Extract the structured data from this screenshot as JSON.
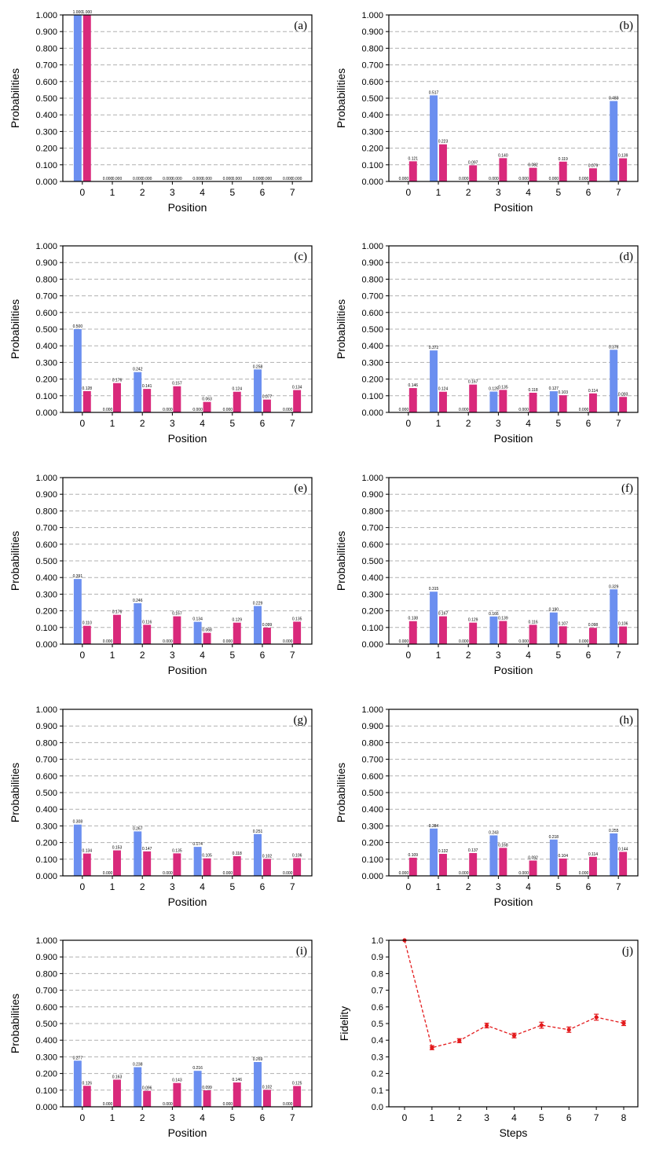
{
  "colors": {
    "series_a": "#6b8ff0",
    "series_b": "#d9297b",
    "fidelity": "#e31a1c",
    "grid": "#b0b0b0"
  },
  "chart_data": [
    {
      "panel": "(a)",
      "type": "bar",
      "categories": [
        "0",
        "1",
        "2",
        "3",
        "4",
        "5",
        "6",
        "7"
      ],
      "xlabel": "Position",
      "ylabel": "Probabilities",
      "ylim": [
        0,
        1.0
      ],
      "yticks": [
        "0.000",
        "0.100",
        "0.200",
        "0.300",
        "0.400",
        "0.500",
        "0.600",
        "0.700",
        "0.800",
        "0.900",
        "1.000"
      ],
      "grid": true,
      "series": [
        {
          "name": "blue",
          "values": [
            1.0,
            0.0,
            0.0,
            0.0,
            0.0,
            0.0,
            0.0,
            0.0
          ]
        },
        {
          "name": "pink",
          "values": [
            1.0,
            0.0,
            0.0,
            0.0,
            0.0,
            0.0,
            0.0,
            0.0
          ]
        }
      ]
    },
    {
      "panel": "(b)",
      "type": "bar",
      "categories": [
        "0",
        "1",
        "2",
        "3",
        "4",
        "5",
        "6",
        "7"
      ],
      "xlabel": "Position",
      "ylabel": "Probabilities",
      "ylim": [
        0,
        1.0
      ],
      "yticks": [
        "0.000",
        "0.100",
        "0.200",
        "0.300",
        "0.400",
        "0.500",
        "0.600",
        "0.700",
        "0.800",
        "0.900",
        "1.000"
      ],
      "grid": true,
      "series": [
        {
          "name": "blue",
          "values": [
            0.0,
            0.517,
            0.0,
            0.0,
            0.0,
            0.0,
            0.0,
            0.483
          ]
        },
        {
          "name": "pink",
          "values": [
            0.121,
            0.223,
            0.097,
            0.14,
            0.082,
            0.119,
            0.079,
            0.139
          ]
        }
      ]
    },
    {
      "panel": "(c)",
      "type": "bar",
      "categories": [
        "0",
        "1",
        "2",
        "3",
        "4",
        "5",
        "6",
        "7"
      ],
      "xlabel": "Position",
      "ylabel": "Probabilities",
      "ylim": [
        0,
        1.0
      ],
      "yticks": [
        "0.000",
        "0.100",
        "0.200",
        "0.300",
        "0.400",
        "0.500",
        "0.600",
        "0.700",
        "0.800",
        "0.900",
        "1.000"
      ],
      "grid": true,
      "series": [
        {
          "name": "blue",
          "values": [
            0.5,
            0.0,
            0.242,
            0.0,
            0.0,
            0.0,
            0.258,
            0.0
          ]
        },
        {
          "name": "pink",
          "values": [
            0.128,
            0.176,
            0.141,
            0.157,
            0.063,
            0.124,
            0.077,
            0.134
          ]
        }
      ]
    },
    {
      "panel": "(d)",
      "type": "bar",
      "categories": [
        "0",
        "1",
        "2",
        "3",
        "4",
        "5",
        "6",
        "7"
      ],
      "xlabel": "Position",
      "ylabel": "Probabilities",
      "ylim": [
        0,
        1.0
      ],
      "yticks": [
        "0.000",
        "0.100",
        "0.200",
        "0.300",
        "0.400",
        "0.500",
        "0.600",
        "0.700",
        "0.800",
        "0.900",
        "1.000"
      ],
      "grid": true,
      "series": [
        {
          "name": "blue",
          "values": [
            0.0,
            0.372,
            0.0,
            0.125,
            0.0,
            0.127,
            0.0,
            0.376
          ]
        },
        {
          "name": "pink",
          "values": [
            0.146,
            0.124,
            0.167,
            0.135,
            0.118,
            0.103,
            0.114,
            0.093
          ]
        }
      ]
    },
    {
      "panel": "(e)",
      "type": "bar",
      "categories": [
        "0",
        "1",
        "2",
        "3",
        "4",
        "5",
        "6",
        "7"
      ],
      "xlabel": "Position",
      "ylabel": "Probabilities",
      "ylim": [
        0,
        1.0
      ],
      "yticks": [
        "0.000",
        "0.100",
        "0.200",
        "0.300",
        "0.400",
        "0.500",
        "0.600",
        "0.700",
        "0.800",
        "0.900",
        "1.000"
      ],
      "grid": true,
      "series": [
        {
          "name": "blue",
          "values": [
            0.391,
            0.0,
            0.246,
            0.0,
            0.134,
            0.0,
            0.229,
            0.0
          ]
        },
        {
          "name": "pink",
          "values": [
            0.11,
            0.176,
            0.116,
            0.167,
            0.068,
            0.129,
            0.099,
            0.135
          ]
        }
      ]
    },
    {
      "panel": "(f)",
      "type": "bar",
      "categories": [
        "0",
        "1",
        "2",
        "3",
        "4",
        "5",
        "6",
        "7"
      ],
      "xlabel": "Position",
      "ylabel": "Probabilities",
      "ylim": [
        0,
        1.0
      ],
      "yticks": [
        "0.000",
        "0.100",
        "0.200",
        "0.300",
        "0.400",
        "0.500",
        "0.600",
        "0.700",
        "0.800",
        "0.900",
        "1.000"
      ],
      "grid": true,
      "series": [
        {
          "name": "blue",
          "values": [
            0.0,
            0.315,
            0.0,
            0.166,
            0.0,
            0.19,
            0.0,
            0.329
          ]
        },
        {
          "name": "pink",
          "values": [
            0.138,
            0.167,
            0.129,
            0.139,
            0.116,
            0.107,
            0.098,
            0.106
          ]
        }
      ]
    },
    {
      "panel": "(g)",
      "type": "bar",
      "categories": [
        "0",
        "1",
        "2",
        "3",
        "4",
        "5",
        "6",
        "7"
      ],
      "xlabel": "Position",
      "ylabel": "Probabilities",
      "ylim": [
        0,
        1.0
      ],
      "yticks": [
        "0.000",
        "0.100",
        "0.200",
        "0.300",
        "0.400",
        "0.500",
        "0.600",
        "0.700",
        "0.800",
        "0.900",
        "1.000"
      ],
      "grid": true,
      "series": [
        {
          "name": "blue",
          "values": [
            0.308,
            0.0,
            0.267,
            0.0,
            0.174,
            0.0,
            0.251,
            0.0
          ]
        },
        {
          "name": "pink",
          "values": [
            0.134,
            0.153,
            0.147,
            0.135,
            0.105,
            0.118,
            0.102,
            0.106
          ]
        }
      ]
    },
    {
      "panel": "(h)",
      "type": "bar",
      "categories": [
        "0",
        "1",
        "2",
        "3",
        "4",
        "5",
        "6",
        "7"
      ],
      "xlabel": "Position",
      "ylabel": "Probabilities",
      "ylim": [
        0,
        1.0
      ],
      "yticks": [
        "0.000",
        "0.100",
        "0.200",
        "0.300",
        "0.400",
        "0.500",
        "0.600",
        "0.700",
        "0.800",
        "0.900",
        "1.000"
      ],
      "grid": true,
      "series": [
        {
          "name": "blue",
          "values": [
            0.0,
            0.284,
            0.0,
            0.243,
            0.0,
            0.218,
            0.0,
            0.255
          ]
        },
        {
          "name": "pink",
          "values": [
            0.109,
            0.132,
            0.137,
            0.168,
            0.092,
            0.104,
            0.114,
            0.144
          ]
        }
      ]
    },
    {
      "panel": "(i)",
      "type": "bar",
      "categories": [
        "0",
        "1",
        "2",
        "3",
        "4",
        "5",
        "6",
        "7"
      ],
      "xlabel": "Position",
      "ylabel": "Probabilities",
      "ylim": [
        0,
        1.0
      ],
      "yticks": [
        "0.000",
        "0.100",
        "0.200",
        "0.300",
        "0.400",
        "0.500",
        "0.600",
        "0.700",
        "0.800",
        "0.900",
        "1.000"
      ],
      "grid": true,
      "series": [
        {
          "name": "blue",
          "values": [
            0.277,
            0.0,
            0.238,
            0.0,
            0.216,
            0.0,
            0.269,
            0.0
          ]
        },
        {
          "name": "pink",
          "values": [
            0.126,
            0.163,
            0.096,
            0.143,
            0.099,
            0.146,
            0.102,
            0.125
          ]
        }
      ]
    },
    {
      "panel": "(j)",
      "type": "line",
      "x": [
        0,
        1,
        2,
        3,
        4,
        5,
        6,
        7,
        8
      ],
      "xticks": [
        "0",
        "1",
        "2",
        "3",
        "4",
        "5",
        "6",
        "7",
        "8"
      ],
      "y": [
        1.0,
        0.355,
        0.397,
        0.488,
        0.428,
        0.49,
        0.463,
        0.538,
        0.502
      ],
      "yerr": [
        0.0,
        0.012,
        0.012,
        0.014,
        0.014,
        0.018,
        0.016,
        0.018,
        0.014
      ],
      "xlabel": "Steps",
      "ylabel": "Fidelity",
      "ylim": [
        0,
        1.0
      ],
      "yticks": [
        "0.0",
        "0.1",
        "0.2",
        "0.3",
        "0.4",
        "0.5",
        "0.6",
        "0.7",
        "0.8",
        "0.9",
        "1.0"
      ],
      "grid": false
    }
  ]
}
